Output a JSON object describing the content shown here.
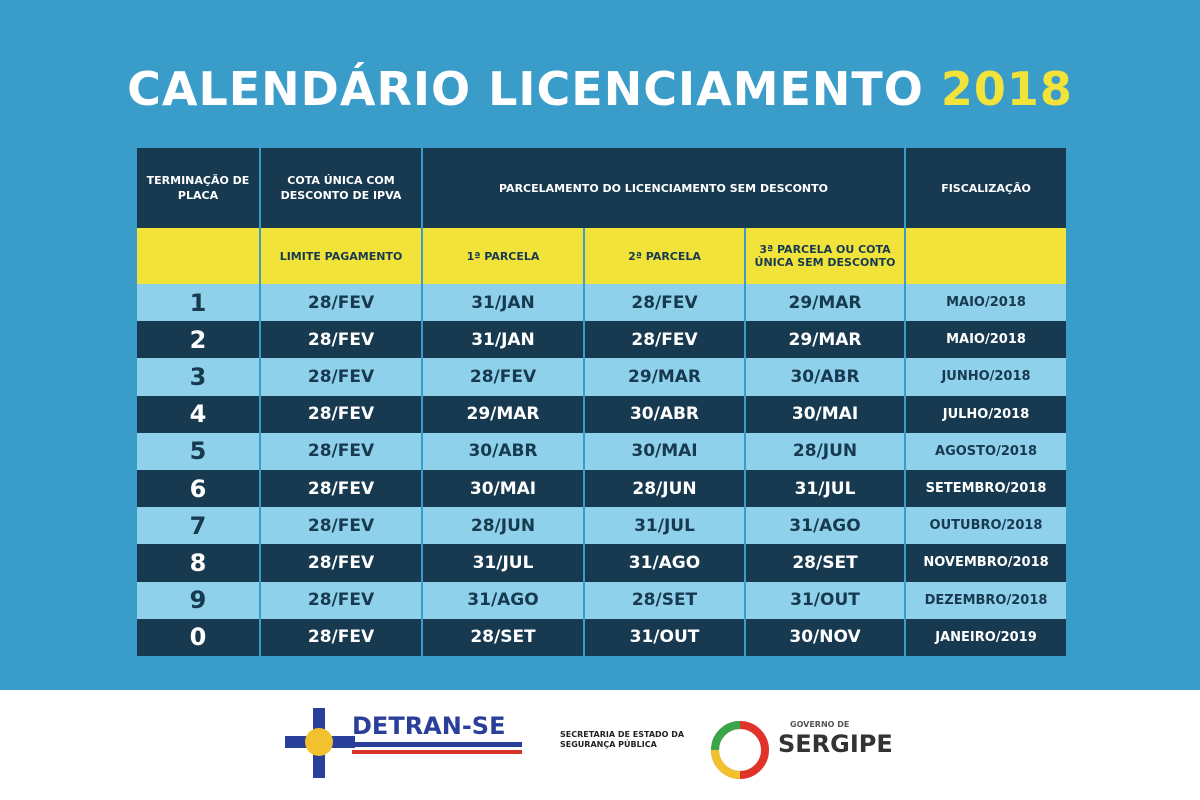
{
  "header": {
    "title": "CALENDÁRIO LICENCIAMENTO",
    "year": "2018"
  },
  "table": {
    "head1": [
      "TERMINAÇÃO DE PLACA",
      "COTA ÚNICA COM DESCONTO DE IPVA",
      "PARCELAMENTO DO LICENCIAMENTO SEM DESCONTO",
      "FISCALIZAÇÃO"
    ],
    "head2": [
      "LIMITE PAGAMENTO",
      "1ª PARCELA",
      "2ª PARCELA",
      "3ª PARCELA OU COTA ÚNICA SEM DESCONTO"
    ],
    "rows": [
      [
        "1",
        "28/FEV",
        "31/JAN",
        "28/FEV",
        "29/MAR",
        "MAIO/2018"
      ],
      [
        "2",
        "28/FEV",
        "31/JAN",
        "28/FEV",
        "29/MAR",
        "MAIO/2018"
      ],
      [
        "3",
        "28/FEV",
        "28/FEV",
        "29/MAR",
        "30/ABR",
        "JUNHO/2018"
      ],
      [
        "4",
        "28/FEV",
        "29/MAR",
        "30/ABR",
        "30/MAI",
        "JULHO/2018"
      ],
      [
        "5",
        "28/FEV",
        "30/ABR",
        "30/MAI",
        "28/JUN",
        "AGOSTO/2018"
      ],
      [
        "6",
        "28/FEV",
        "30/MAI",
        "28/JUN",
        "31/JUL",
        "SETEMBRO/2018"
      ],
      [
        "7",
        "28/FEV",
        "28/JUN",
        "31/JUL",
        "31/AGO",
        "OUTUBRO/2018"
      ],
      [
        "8",
        "28/FEV",
        "31/JUL",
        "31/AGO",
        "28/SET",
        "NOVEMBRO/2018"
      ],
      [
        "9",
        "28/FEV",
        "31/AGO",
        "28/SET",
        "31/OUT",
        "DEZEMBRO/2018"
      ],
      [
        "0",
        "28/FEV",
        "28/SET",
        "31/OUT",
        "30/NOV",
        "JANEIRO/2019"
      ]
    ]
  },
  "footer": {
    "detran": "DETRAN-SE",
    "secretaria": "SECRETARIA DE ESTADO DA SEGURANÇA PÚBLICA",
    "governo": "GOVERNO DE",
    "sergipe": "SERGIPE"
  }
}
